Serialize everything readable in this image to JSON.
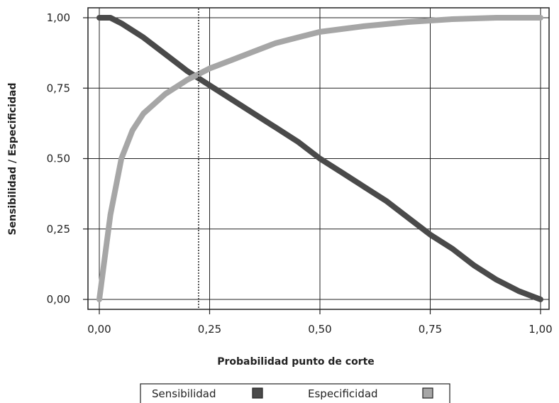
{
  "chart_data": {
    "type": "line",
    "title": "",
    "xlabel": "Probabilidad punto de corte",
    "ylabel": "Sensibilidad / Especificidad",
    "xlim": [
      0,
      1
    ],
    "ylim": [
      0,
      1
    ],
    "x_ticks": [
      0,
      0.25,
      0.5,
      0.75,
      1
    ],
    "x_tick_labels": [
      "0,00",
      "0,25",
      "0,50",
      "0,75",
      "1,00"
    ],
    "y_ticks": [
      0,
      0.25,
      0.5,
      0.75,
      1
    ],
    "y_tick_labels": [
      "0,00",
      "0,25",
      "0.50",
      "0,75",
      "1,00"
    ],
    "grid": true,
    "legend_position": "bottom",
    "cutoff_line_x": 0.225,
    "series": [
      {
        "name": "Sensibilidad",
        "color": "#4a4a4a",
        "x": [
          0,
          0.025,
          0.05,
          0.1,
          0.15,
          0.2,
          0.25,
          0.3,
          0.35,
          0.4,
          0.45,
          0.5,
          0.55,
          0.6,
          0.65,
          0.7,
          0.75,
          0.8,
          0.85,
          0.9,
          0.95,
          1
        ],
        "y": [
          1.0,
          1.0,
          0.98,
          0.93,
          0.87,
          0.81,
          0.76,
          0.71,
          0.66,
          0.61,
          0.56,
          0.5,
          0.45,
          0.4,
          0.35,
          0.29,
          0.23,
          0.18,
          0.12,
          0.07,
          0.03,
          0.0
        ]
      },
      {
        "name": "Especificidad",
        "color": "#a6a6a6",
        "x": [
          0,
          0.01,
          0.025,
          0.05,
          0.075,
          0.1,
          0.15,
          0.2,
          0.25,
          0.3,
          0.35,
          0.4,
          0.45,
          0.5,
          0.6,
          0.7,
          0.8,
          0.9,
          1
        ],
        "y": [
          0.0,
          0.12,
          0.3,
          0.5,
          0.6,
          0.66,
          0.73,
          0.78,
          0.82,
          0.85,
          0.88,
          0.91,
          0.93,
          0.95,
          0.97,
          0.985,
          0.995,
          1.0,
          1.0
        ]
      }
    ]
  }
}
